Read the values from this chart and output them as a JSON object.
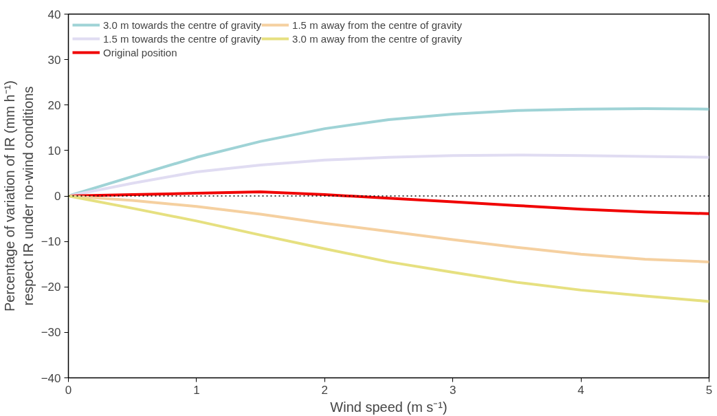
{
  "chart_data": {
    "type": "line",
    "xlabel": "Wind speed (m s⁻¹)",
    "ylabel": "Percentage of variation of IR (mm h⁻¹)\nrespect IR under no-wind conditions",
    "x": [
      0,
      0.5,
      1,
      1.5,
      2,
      2.5,
      3,
      3.5,
      4,
      4.5,
      5
    ],
    "series": [
      {
        "name": "3.0 m towards the centre of gravity",
        "color": "#9fd3d6",
        "values": [
          0,
          4.3,
          8.5,
          12,
          14.8,
          16.8,
          18,
          18.8,
          19.1,
          19.2,
          19.1
        ]
      },
      {
        "name": "1.5 m towards the centre of gravity",
        "color": "#e0dcf2",
        "values": [
          0,
          2.8,
          5.3,
          6.8,
          7.9,
          8.5,
          8.9,
          9,
          8.9,
          8.7,
          8.5
        ]
      },
      {
        "name": "Original position",
        "color": "#f00000",
        "values": [
          0,
          0.3,
          0.6,
          0.9,
          0.3,
          -0.5,
          -1.3,
          -2.1,
          -2.9,
          -3.5,
          -3.9
        ]
      },
      {
        "name": "1.5 m away from the centre of gravity",
        "color": "#f5d0a0",
        "values": [
          0,
          -1.0,
          -2.3,
          -4,
          -6,
          -7.8,
          -9.6,
          -11.3,
          -12.8,
          -13.9,
          -14.5
        ]
      },
      {
        "name": "3.0 m away from the centre of gravity",
        "color": "#e6e080",
        "values": [
          0,
          -2.7,
          -5.5,
          -8.6,
          -11.6,
          -14.5,
          -16.8,
          -19,
          -20.7,
          -22,
          -23.2
        ]
      }
    ],
    "xlim": [
      0,
      5
    ],
    "ylim": [
      -40,
      40
    ],
    "xticks": [
      0,
      1,
      2,
      3,
      4,
      5
    ],
    "yticks": [
      {
        "value": -40,
        "label": "−40"
      },
      {
        "value": -30,
        "label": "−30"
      },
      {
        "value": -20,
        "label": "−20"
      },
      {
        "value": -10,
        "label": "−10"
      },
      0,
      10,
      20,
      30,
      40
    ],
    "ref_lines": [
      {
        "axis": "y",
        "value": 0,
        "label": null,
        "color": "#000000",
        "line_style": "dotted"
      }
    ],
    "grid": false,
    "legend": "top left",
    "line_style": "solid",
    "marker": "none"
  }
}
